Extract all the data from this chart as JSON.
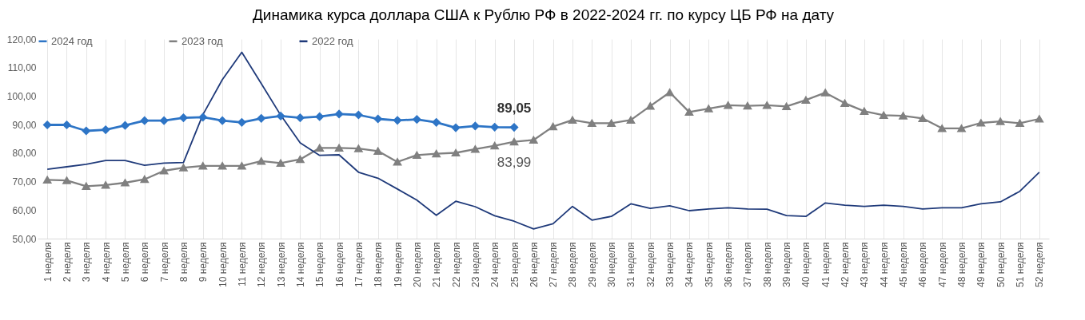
{
  "chart_data": {
    "type": "line",
    "title": "Динамика курса доллара США к Рублю РФ в 2022-2024 гг. по курсу ЦБ РФ на дату",
    "categories": [
      "1 неделя",
      "2 неделя",
      "3 неделя",
      "4 неделя",
      "5 неделя",
      "6 неделя",
      "7 неделя",
      "8 неделя",
      "9 неделя",
      "10 неделя",
      "11 неделя",
      "12 неделя",
      "13 неделя",
      "14 неделя",
      "15 неделя",
      "16 неделя",
      "17 неделя",
      "18 неделя",
      "19 неделя",
      "20 неделя",
      "21 неделя",
      "22 неделя",
      "23 неделя",
      "24 неделя",
      "25 неделя",
      "26 неделя",
      "27 неделя",
      "28 неделя",
      "29 неделя",
      "30 неделя",
      "31 неделя",
      "32 неделя",
      "33 неделя",
      "34 неделя",
      "35 неделя",
      "36 неделя",
      "37 неделя",
      "38 неделя",
      "39 неделя",
      "40 неделя",
      "41 неделя",
      "42 неделя",
      "43 неделя",
      "44 неделя",
      "45 неделя",
      "46 неделя",
      "47 неделя",
      "48 неделя",
      "49 неделя",
      "50 неделя",
      "51 неделя",
      "52 неделя"
    ],
    "series": [
      {
        "name": "2024 год",
        "color": "#2e75c6",
        "marker": "diamond",
        "values": [
          89.9,
          89.9,
          87.8,
          88.2,
          89.7,
          91.4,
          91.4,
          92.4,
          92.6,
          91.4,
          90.8,
          92.2,
          93.0,
          92.4,
          92.8,
          93.7,
          93.4,
          92.0,
          91.5,
          91.8,
          90.8,
          88.9,
          89.5,
          89.1,
          89.05,
          null,
          null,
          null,
          null,
          null,
          null,
          null,
          null,
          null,
          null,
          null,
          null,
          null,
          null,
          null,
          null,
          null,
          null,
          null,
          null,
          null,
          null,
          null,
          null,
          null,
          null,
          null
        ],
        "value_labels": [
          null,
          null,
          null,
          null,
          null,
          null,
          null,
          null,
          null,
          null,
          null,
          null,
          null,
          null,
          null,
          null,
          null,
          null,
          null,
          null,
          null,
          null,
          null,
          null,
          "89,05",
          null,
          null,
          null,
          null,
          null,
          null,
          null,
          null,
          null,
          null,
          null,
          null,
          null,
          null,
          null,
          null,
          null,
          null,
          null,
          null,
          null,
          null,
          null,
          null,
          null,
          null,
          null
        ]
      },
      {
        "name": "2023 год",
        "color": "#808080",
        "marker": "triangle",
        "values": [
          70.6,
          70.4,
          68.4,
          68.8,
          69.6,
          70.8,
          73.8,
          74.9,
          75.5,
          75.5,
          75.5,
          77.2,
          76.5,
          77.8,
          81.8,
          81.8,
          81.6,
          80.7,
          76.9,
          79.3,
          79.8,
          80.1,
          81.4,
          82.6,
          83.99,
          84.6,
          89.3,
          91.6,
          90.5,
          90.5,
          91.6,
          96.5,
          101.3,
          94.4,
          95.6,
          96.8,
          96.6,
          96.8,
          96.4,
          98.6,
          101.2,
          97.5,
          94.7,
          93.3,
          93.1,
          92.2,
          88.7,
          88.7,
          90.6,
          91.1,
          90.5,
          92.0
        ],
        "value_labels": [
          null,
          null,
          null,
          null,
          null,
          null,
          null,
          null,
          null,
          null,
          null,
          null,
          null,
          null,
          null,
          null,
          null,
          null,
          null,
          null,
          null,
          null,
          null,
          null,
          "83,99",
          null,
          null,
          null,
          null,
          null,
          null,
          null,
          null,
          null,
          null,
          null,
          null,
          null,
          null,
          null,
          null,
          null,
          null,
          null,
          null,
          null,
          null,
          null,
          null,
          null,
          null,
          null
        ]
      },
      {
        "name": "2022 год",
        "color": "#1f3a7a",
        "marker": "none",
        "values": [
          74.3,
          75.2,
          76.1,
          77.4,
          77.4,
          75.7,
          76.5,
          76.7,
          93.5,
          105.8,
          115.4,
          104.4,
          93.3,
          83.6,
          79.2,
          79.4,
          73.3,
          71.2,
          67.4,
          63.5,
          58.2,
          63.1,
          61.2,
          58.0,
          56.1,
          53.4,
          55.2,
          61.3,
          56.5,
          57.8,
          62.2,
          60.6,
          61.5,
          59.8,
          60.4,
          60.8,
          60.4,
          60.3,
          58.1,
          57.8,
          62.5,
          61.7,
          61.3,
          61.7,
          61.3,
          60.4,
          60.8,
          60.8,
          62.2,
          62.9,
          66.6,
          73.3
        ]
      }
    ],
    "ylim": [
      50,
      120
    ],
    "yticks": [
      {
        "value": 50,
        "label": "50,00"
      },
      {
        "value": 60,
        "label": "60,00"
      },
      {
        "value": 70,
        "label": "70,00"
      },
      {
        "value": 80,
        "label": "80,00"
      },
      {
        "value": 90,
        "label": "90,00"
      },
      {
        "value": 100,
        "label": "100,00"
      },
      {
        "value": 110,
        "label": "110,00"
      },
      {
        "value": 120,
        "label": "120,00"
      }
    ],
    "grid": "x",
    "legend": "top"
  }
}
